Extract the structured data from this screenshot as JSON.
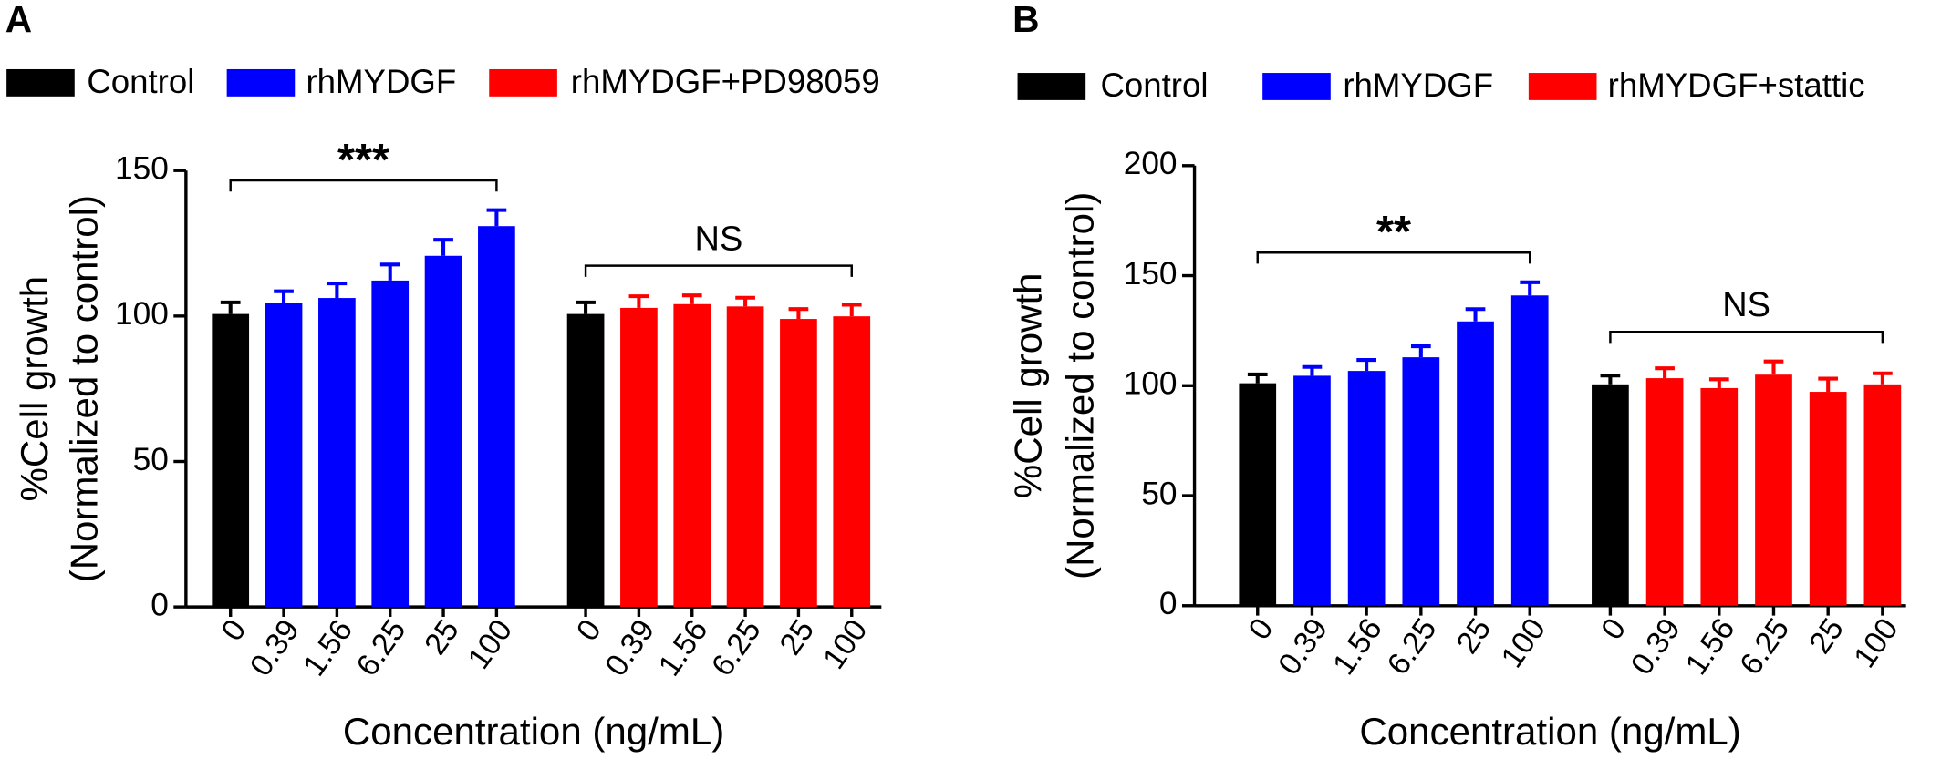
{
  "chart_data": [
    {
      "type": "bar",
      "panel": "A",
      "categories": [
        "0",
        "0.39",
        "1.56",
        "6.25",
        "25",
        "100",
        "0",
        "0.39",
        "1.56",
        "6.25",
        "25",
        "100"
      ],
      "series": [
        {
          "name": "Control",
          "color": "#000000",
          "values": [
            100.7,
            null,
            null,
            null,
            null,
            null,
            100.7,
            null,
            null,
            null,
            null,
            null
          ],
          "errors": [
            4,
            null,
            null,
            null,
            null,
            null,
            4,
            null,
            null,
            null,
            null,
            null
          ]
        },
        {
          "name": "rhMYDGF",
          "color": "#0000ff",
          "values": [
            null,
            104.5,
            106.2,
            112.2,
            120.7,
            130.9,
            null,
            null,
            null,
            null,
            null,
            null
          ],
          "errors": [
            null,
            4,
            5,
            5.5,
            5.5,
            5.5,
            null,
            null,
            null,
            null,
            null,
            null
          ]
        },
        {
          "name": "rhMYDGF+PD98059",
          "color": "#ff0000",
          "values": [
            null,
            null,
            null,
            null,
            null,
            null,
            null,
            102.8,
            104.1,
            103.3,
            99,
            99.9
          ],
          "errors": [
            null,
            null,
            null,
            null,
            null,
            null,
            null,
            4,
            3,
            3,
            3.4,
            4
          ]
        }
      ],
      "ylabel": [
        "%Cell growth",
        "(Normalized to control)"
      ],
      "xlabel": "Concentration (ng/mL)",
      "ylim": [
        0,
        150
      ],
      "yticks": [
        0,
        50,
        100,
        150
      ],
      "annotations": [
        "***",
        "NS"
      ]
    },
    {
      "type": "bar",
      "panel": "B",
      "categories": [
        "0",
        "0.39",
        "1.56",
        "6.25",
        "25",
        "100",
        "0",
        "0.39",
        "1.56",
        "6.25",
        "25",
        "100"
      ],
      "series": [
        {
          "name": "Control",
          "color": "#000000",
          "values": [
            101.1,
            null,
            null,
            null,
            null,
            null,
            100.6,
            null,
            null,
            null,
            null,
            null
          ],
          "errors": [
            4,
            null,
            null,
            null,
            null,
            null,
            4,
            null,
            null,
            null,
            null,
            null
          ]
        },
        {
          "name": "rhMYDGF",
          "color": "#0000ff",
          "values": [
            null,
            104.5,
            106.7,
            112.9,
            129.2,
            141,
            null,
            null,
            null,
            null,
            null,
            null
          ],
          "errors": [
            null,
            4,
            5,
            5,
            5.6,
            6,
            null,
            null,
            null,
            null,
            null,
            null
          ]
        },
        {
          "name": "rhMYDGF+stattic",
          "color": "#ff0000",
          "values": [
            null,
            null,
            null,
            null,
            null,
            null,
            null,
            103.4,
            98.9,
            105,
            97.2,
            100.6
          ],
          "errors": [
            null,
            null,
            null,
            null,
            null,
            null,
            null,
            4.5,
            4,
            6,
            6,
            5
          ]
        }
      ],
      "ylabel": [
        "%Cell growth",
        "(Normalized to control)"
      ],
      "xlabel": "Concentration (ng/mL)",
      "ylim": [
        0,
        200
      ],
      "yticks": [
        0,
        50,
        100,
        150,
        200
      ],
      "annotations": [
        "**",
        "NS"
      ]
    }
  ]
}
